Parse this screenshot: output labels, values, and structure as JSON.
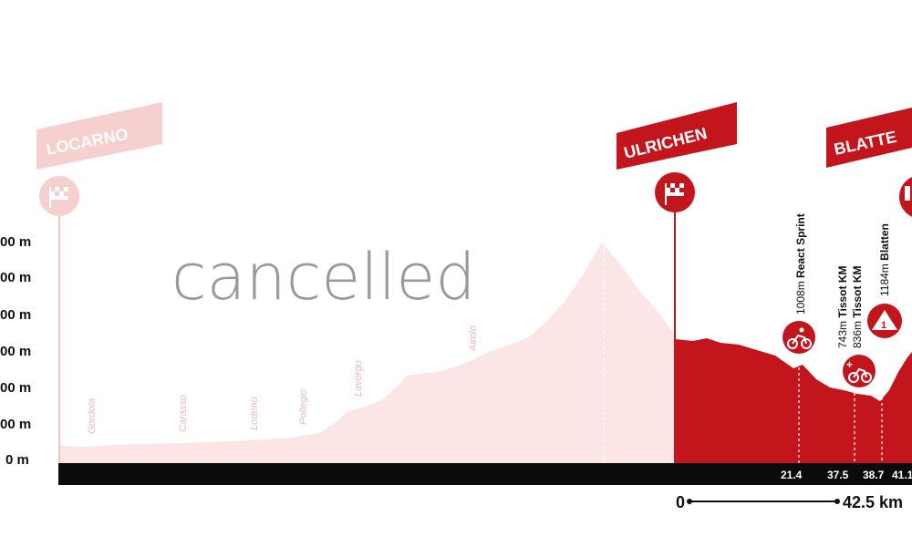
{
  "chart_data": {
    "type": "area",
    "unit": "m",
    "y_ticks": [
      "00 m",
      "00 m",
      "00 m",
      "00 m",
      "00 m",
      "00 m",
      "0 m"
    ],
    "cancelled_label": "cancelled",
    "start_town": "LOCARNO",
    "finish_town": "ULRICHEN",
    "summit_town": "BLATTE",
    "towns": [
      "Gordola",
      "Carasso",
      "Lodrino",
      "Pollegio",
      "Lavorgo",
      "Airolo"
    ],
    "km_marks": [
      "21.4",
      "37.5",
      "38.7",
      "41.1"
    ],
    "events": [
      {
        "altitude": "1008m",
        "name": "React Sprint"
      },
      {
        "altitude": "743m",
        "name": "Tissot KM"
      },
      {
        "altitude": "836m",
        "name": "Tissot KM"
      },
      {
        "altitude": "1184m",
        "name": "Blatten"
      }
    ],
    "climb_category": "1",
    "scale_start": "0",
    "scale_end": "42.5 km"
  }
}
